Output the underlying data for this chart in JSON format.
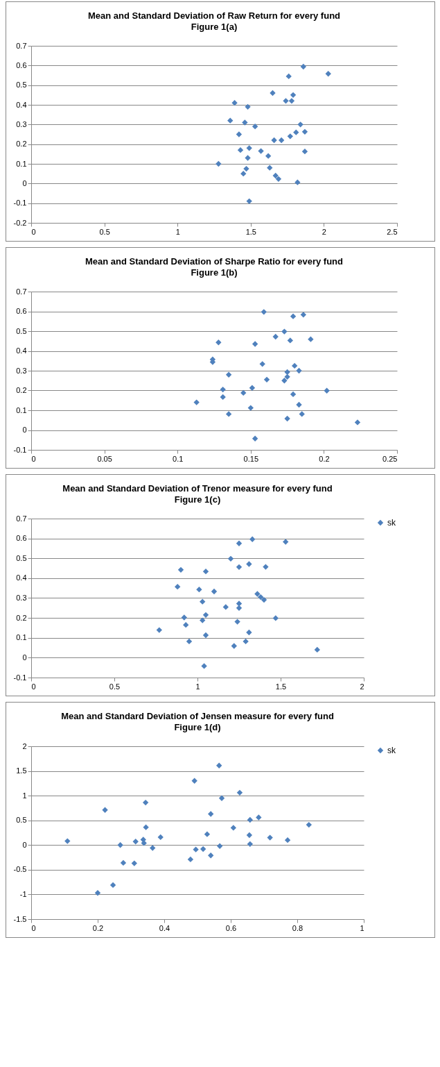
{
  "chart_data": [
    {
      "type": "scatter",
      "title": "Mean and Standard  Deviation of Raw Return for every fund",
      "subtitle": "Figure 1(a)",
      "marker": "diamond",
      "grid": "y",
      "xlim": [
        0,
        2.5
      ],
      "xticks": [
        0,
        0.5,
        1,
        1.5,
        2,
        2.5
      ],
      "ylim": [
        -0.2,
        0.7
      ],
      "yticks": [
        -0.2,
        -0.1,
        0,
        0.1,
        0.2,
        0.3,
        0.4,
        0.5,
        0.6,
        0.7
      ],
      "series": [
        {
          "color": "#4f81bd",
          "x": [
            1.28,
            1.36,
            1.39,
            1.42,
            1.43,
            1.45,
            1.46,
            1.47,
            1.48,
            1.48,
            1.49,
            1.49,
            1.53,
            1.57,
            1.62,
            1.63,
            1.65,
            1.66,
            1.67,
            1.69,
            1.71,
            1.74,
            1.76,
            1.77,
            1.78,
            1.79,
            1.81,
            1.82,
            1.84,
            1.86,
            1.87,
            1.87,
            2.03
          ],
          "values": [
            0.1,
            0.32,
            0.41,
            0.25,
            0.17,
            0.05,
            0.31,
            0.075,
            0.39,
            0.13,
            0.18,
            -0.09,
            0.29,
            0.165,
            0.14,
            0.08,
            0.46,
            0.22,
            0.04,
            0.023,
            0.22,
            0.42,
            0.545,
            0.24,
            0.42,
            0.45,
            0.26,
            0.006,
            0.3,
            0.594,
            0.163,
            0.263,
            0.558
          ]
        }
      ]
    },
    {
      "type": "scatter",
      "title": "Mean and Standard  Deviation of Sharpe Ratio for every fund",
      "subtitle": "Figure 1(b)",
      "marker": "diamond",
      "grid": "y",
      "xlim": [
        0,
        0.25
      ],
      "xticks": [
        0,
        0.05,
        0.1,
        0.15,
        0.2,
        0.25
      ],
      "ylim": [
        -0.1,
        0.7
      ],
      "yticks": [
        -0.1,
        0,
        0.1,
        0.2,
        0.3,
        0.4,
        0.5,
        0.6,
        0.7
      ],
      "series": [
        {
          "color": "#4f81bd",
          "x": [
            0.113,
            0.124,
            0.124,
            0.128,
            0.131,
            0.131,
            0.135,
            0.135,
            0.145,
            0.15,
            0.151,
            0.153,
            0.153,
            0.158,
            0.159,
            0.161,
            0.167,
            0.173,
            0.173,
            0.175,
            0.175,
            0.175,
            0.177,
            0.179,
            0.179,
            0.18,
            0.183,
            0.183,
            0.185,
            0.186,
            0.191,
            0.202,
            0.223
          ],
          "values": [
            0.14,
            0.357,
            0.344,
            0.443,
            0.205,
            0.167,
            0.28,
            0.081,
            0.188,
            0.112,
            0.213,
            0.435,
            -0.043,
            0.334,
            0.597,
            0.255,
            0.472,
            0.498,
            0.25,
            0.269,
            0.293,
            0.058,
            0.453,
            0.181,
            0.575,
            0.325,
            0.128,
            0.3,
            0.081,
            0.583,
            0.459,
            0.199,
            0.039
          ]
        }
      ]
    },
    {
      "type": "scatter",
      "title": "Mean and Standard  Deviation of Trenor measure for every fund",
      "subtitle": "Figure 1(c)",
      "marker": "diamond",
      "grid": "y",
      "legend": "right",
      "xlim": [
        0,
        2
      ],
      "xticks": [
        0,
        0.5,
        1,
        1.5,
        2
      ],
      "ylim": [
        -0.1,
        0.7
      ],
      "yticks": [
        -0.1,
        0,
        0.1,
        0.2,
        0.3,
        0.4,
        0.5,
        0.6,
        0.7
      ],
      "series": [
        {
          "name": "sk",
          "color": "#4f81bd",
          "x": [
            0.77,
            0.88,
            0.9,
            0.92,
            0.93,
            0.95,
            1.01,
            1.03,
            1.03,
            1.04,
            1.05,
            1.05,
            1.05,
            1.1,
            1.17,
            1.2,
            1.22,
            1.24,
            1.25,
            1.25,
            1.25,
            1.25,
            1.29,
            1.31,
            1.31,
            1.33,
            1.36,
            1.38,
            1.4,
            1.41,
            1.47,
            1.53,
            1.72
          ],
          "values": [
            0.139,
            0.357,
            0.442,
            0.202,
            0.165,
            0.082,
            0.343,
            0.282,
            0.188,
            -0.042,
            0.215,
            0.113,
            0.434,
            0.333,
            0.255,
            0.498,
            0.059,
            0.181,
            0.272,
            0.25,
            0.575,
            0.456,
            0.082,
            0.127,
            0.471,
            0.596,
            0.321,
            0.305,
            0.291,
            0.457,
            0.199,
            0.583,
            0.04
          ]
        }
      ]
    },
    {
      "type": "scatter",
      "title": "Mean and Standard  Deviation of Jensen measure for every fund",
      "subtitle": "Figure 1(d)",
      "marker": "diamond",
      "grid": "y",
      "legend": "right",
      "xlim": [
        0,
        1
      ],
      "xticks": [
        0,
        0.2,
        0.4,
        0.6,
        0.8,
        1
      ],
      "ylim": [
        -1.5,
        2
      ],
      "yticks": [
        -1.5,
        -1,
        -0.5,
        0,
        0.5,
        1,
        1.5,
        2
      ],
      "series": [
        {
          "name": "sk",
          "color": "#4f81bd",
          "x": [
            0.109,
            0.2,
            0.222,
            0.246,
            0.268,
            0.277,
            0.31,
            0.314,
            0.337,
            0.339,
            0.344,
            0.345,
            0.365,
            0.389,
            0.479,
            0.491,
            0.495,
            0.517,
            0.529,
            0.54,
            0.54,
            0.565,
            0.567,
            0.573,
            0.608,
            0.627,
            0.656,
            0.658,
            0.658,
            0.684,
            0.718,
            0.771,
            0.835
          ],
          "values": [
            0.08,
            -0.97,
            0.71,
            -0.81,
            0.0,
            -0.36,
            -0.37,
            0.07,
            0.11,
            0.04,
            0.86,
            0.36,
            -0.06,
            0.16,
            -0.29,
            1.3,
            -0.09,
            -0.08,
            0.22,
            -0.21,
            0.63,
            1.61,
            -0.02,
            0.95,
            0.35,
            1.06,
            0.2,
            0.51,
            0.02,
            0.56,
            0.15,
            0.1,
            0.41
          ]
        }
      ]
    }
  ]
}
